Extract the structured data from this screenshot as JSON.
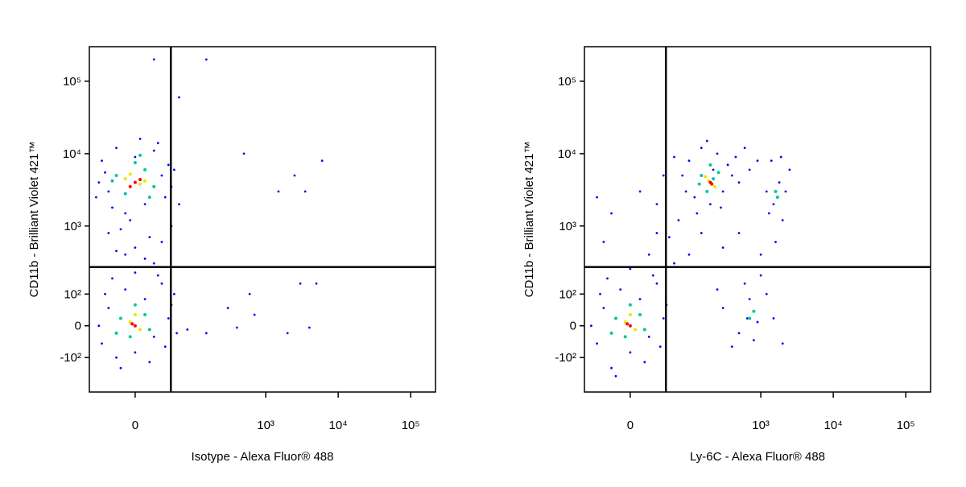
{
  "chart_data": [
    {
      "type": "scatter",
      "x_label": "Isotype - Alexa Fluor® 488",
      "y_label": "CD11b - Brilliant Violet 421™",
      "xlim": [
        -64,
        220000
      ],
      "ylim": [
        -340,
        300000
      ],
      "xticks": [
        0,
        {
          "value": 1000,
          "label": "10³"
        },
        {
          "value": 10000,
          "label": "10⁴"
        },
        {
          "value": 100000,
          "label": "10⁵"
        }
      ],
      "yticks": [
        {
          "value": -100,
          "label": "-10²"
        },
        0,
        {
          "value": 100,
          "label": "10²"
        },
        {
          "value": 1000,
          "label": "10³"
        },
        {
          "value": 10000,
          "label": "10⁴"
        },
        {
          "value": 100000,
          "label": "10⁵"
        }
      ],
      "gates": {
        "x": 44,
        "y": 265
      },
      "series": [
        {
          "color": "#0000ff",
          "x": [
            -40,
            -30,
            -20,
            -10,
            0,
            10,
            20,
            30,
            40,
            -35,
            35,
            -25,
            25,
            -45,
            45,
            5,
            -5,
            15,
            -15,
            0,
            10,
            -10,
            30,
            -30,
            20,
            -20,
            45,
            50,
            60,
            -50,
            -40,
            -30,
            -20,
            -10,
            0,
            10,
            20,
            30,
            40,
            -35,
            35,
            -45,
            45,
            25,
            -25,
            0,
            15,
            -15,
            50,
            55,
            80,
            150,
            300,
            600,
            1500,
            2500,
            3500,
            6000,
            500,
            2000,
            3000,
            5000,
            700,
            400,
            4000,
            20,
            150,
            60
          ],
          "y": [
            8000,
            3000,
            12000,
            1500,
            9000,
            2000,
            11000,
            5000,
            7000,
            5500,
            2500,
            1800,
            14000,
            4000,
            3500,
            16000,
            1200,
            700,
            900,
            500,
            350,
            400,
            600,
            800,
            300,
            450,
            1000,
            6000,
            2000,
            2500,
            -50,
            50,
            -100,
            120,
            -80,
            80,
            -30,
            150,
            20,
            100,
            -60,
            0,
            60,
            200,
            180,
            220,
            -120,
            -150,
            100,
            -20,
            -10,
            -20,
            50,
            100,
            3000,
            5000,
            3000,
            8000,
            10000,
            -20,
            150,
            150,
            30,
            -5,
            -5,
            200000,
            200000,
            60000
          ]
        },
        {
          "color": "#00c8a0",
          "x": [
            -20,
            10,
            -10,
            20,
            0,
            -25,
            15,
            5,
            -15,
            10,
            -5,
            15,
            0,
            -20
          ],
          "y": [
            5000,
            6000,
            2800,
            3500,
            7500,
            4200,
            2500,
            9500,
            20,
            30,
            -30,
            -10,
            60,
            -20
          ]
        },
        {
          "color": "#e8e800",
          "x": [
            -10,
            5,
            -5,
            10,
            -5,
            5,
            0
          ],
          "y": [
            4500,
            3800,
            5200,
            4200,
            10,
            -10,
            30
          ]
        },
        {
          "color": "#ff0000",
          "x": [
            0,
            -5,
            5,
            0,
            -3
          ],
          "y": [
            4000,
            3500,
            4400,
            0,
            5
          ]
        }
      ]
    },
    {
      "type": "scatter",
      "x_label": "Ly-6C - Alexa Fluor® 488",
      "y_label": "CD11b - Brilliant Violet 421™",
      "xlim": [
        -64,
        220000
      ],
      "ylim": [
        -340,
        300000
      ],
      "xticks": [
        0,
        {
          "value": 1000,
          "label": "10³"
        },
        {
          "value": 10000,
          "label": "10⁴"
        },
        {
          "value": 100000,
          "label": "10⁵"
        }
      ],
      "yticks": [
        {
          "value": -100,
          "label": "-10²"
        },
        0,
        {
          "value": 100,
          "label": "10²"
        },
        {
          "value": 1000,
          "label": "10³"
        },
        {
          "value": 10000,
          "label": "10⁴"
        },
        {
          "value": 100000,
          "label": "10⁵"
        }
      ],
      "gates": {
        "x": 44,
        "y": 265
      },
      "series": [
        {
          "color": "#0000ff",
          "x": [
            100,
            150,
            250,
            350,
            120,
            200,
            300,
            400,
            80,
            180,
            450,
            130,
            280,
            500,
            90,
            220,
            600,
            700,
            900,
            60,
            1200,
            1500,
            1800,
            2200,
            1400,
            2000,
            1600,
            2500,
            1300,
            1900,
            300,
            500,
            700,
            900,
            1200,
            600,
            400,
            800,
            1500,
            2000,
            250,
            1000,
            650,
            -40,
            -30,
            -20,
            -10,
            0,
            10,
            20,
            30,
            40,
            -35,
            35,
            -50,
            45,
            25,
            -25,
            0,
            15,
            -15,
            20,
            50,
            -20,
            10,
            30,
            60,
            -30,
            40,
            -40,
            100,
            150,
            70,
            300,
            500,
            1000,
            30
          ],
          "y": [
            8000,
            12000,
            10000,
            7000,
            2500,
            2000,
            3000,
            5000,
            5000,
            15000,
            9000,
            1500,
            1800,
            4000,
            3000,
            6000,
            12000,
            6000,
            8000,
            9000,
            3000,
            2000,
            4000,
            3000,
            8000,
            1200,
            600,
            6000,
            1500,
            9000,
            50,
            -20,
            80,
            10,
            100,
            150,
            -60,
            -40,
            20,
            -50,
            120,
            200,
            20,
            -50,
            50,
            -150,
            120,
            -80,
            80,
            -30,
            150,
            20,
            100,
            -60,
            0,
            60,
            200,
            180,
            250,
            -120,
            -200,
            400,
            700,
            1500,
            3000,
            800,
            300,
            600,
            5000,
            2500,
            400,
            800,
            1200,
            500,
            800,
            400,
            2000
          ]
        },
        {
          "color": "#00c8a0",
          "x": [
            150,
            220,
            180,
            260,
            200,
            140,
            1600,
            1700,
            700,
            800,
            -15,
            10,
            -5,
            15,
            0,
            -20
          ],
          "y": [
            5000,
            4500,
            3000,
            5500,
            7000,
            3800,
            3000,
            2500,
            20,
            40,
            20,
            30,
            -30,
            -10,
            60,
            -20
          ]
        },
        {
          "color": "#e8e800",
          "x": [
            190,
            230,
            170,
            -5,
            5,
            0
          ],
          "y": [
            4200,
            3500,
            4800,
            10,
            -10,
            30
          ]
        },
        {
          "color": "#ff0000",
          "x": [
            200,
            210,
            0,
            -3
          ],
          "y": [
            4000,
            3800,
            0,
            5
          ]
        }
      ]
    }
  ]
}
